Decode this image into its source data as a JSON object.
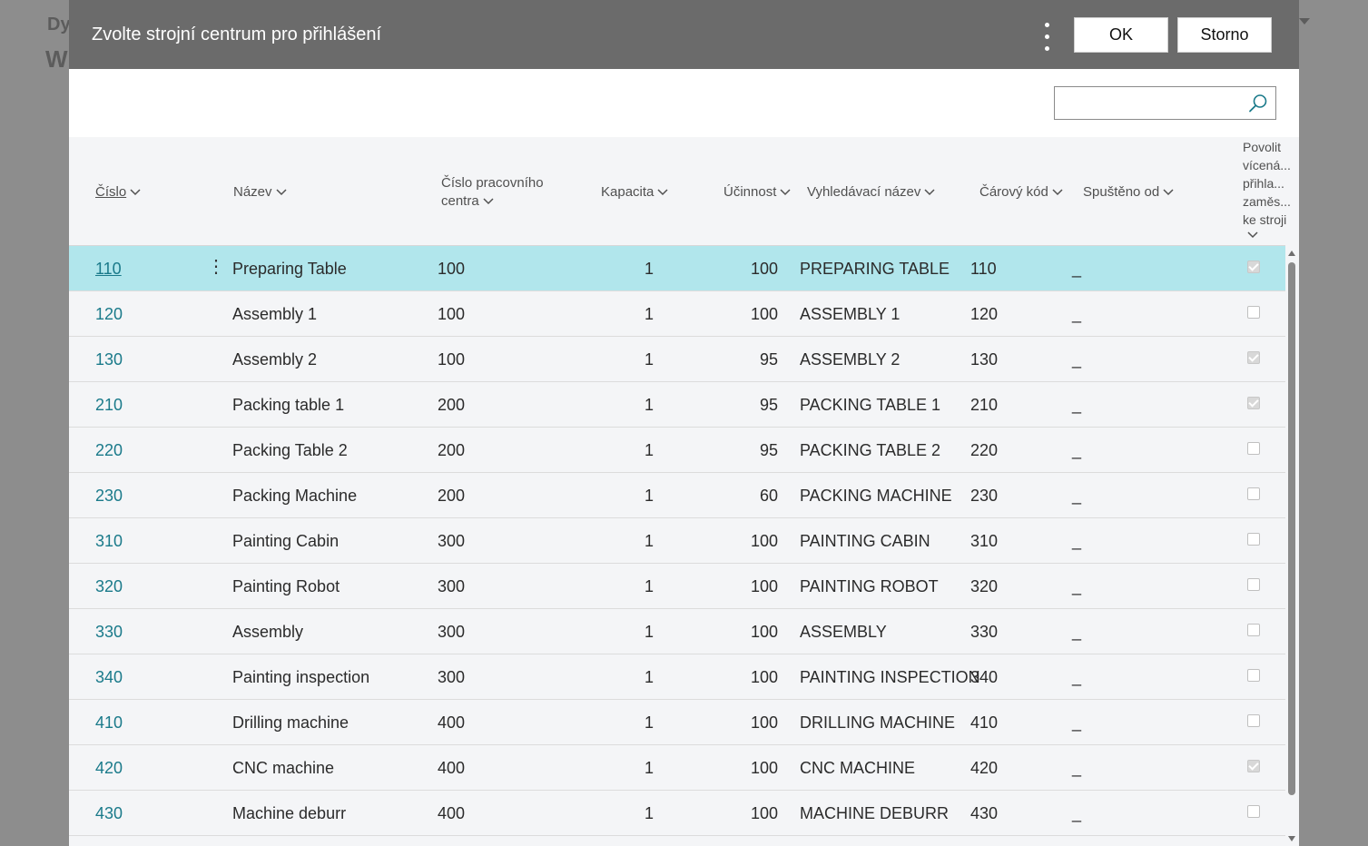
{
  "background": {
    "line1": "Dy",
    "line2": "W"
  },
  "dialog": {
    "title": "Zvolte strojní centrum pro přihlášení",
    "ok_label": "OK",
    "cancel_label": "Storno",
    "search_placeholder": "",
    "search_value": ""
  },
  "columns": {
    "no": "Číslo",
    "name": "Název",
    "center_line1": "Číslo pracovního",
    "center_line2": "centra",
    "capacity": "Kapacita",
    "efficiency": "Účinnost",
    "search_name": "Vyhledávací název",
    "barcode": "Čárový kód",
    "started_from": "Spuštěno od",
    "allow_1": "Povolit",
    "allow_2": "vícená...",
    "allow_3": "přihla...",
    "allow_4": "zaměs...",
    "allow_5": "ke stroji"
  },
  "rows": [
    {
      "no": "110",
      "name": "Preparing Table",
      "center": "100",
      "capacity": "1",
      "efficiency": "100",
      "search_name": "PREPARING TABLE",
      "barcode": "110",
      "started_from": "_",
      "allow_multi": true,
      "selected": true
    },
    {
      "no": "120",
      "name": "Assembly 1",
      "center": "100",
      "capacity": "1",
      "efficiency": "100",
      "search_name": "ASSEMBLY 1",
      "barcode": "120",
      "started_from": "_",
      "allow_multi": false,
      "selected": false
    },
    {
      "no": "130",
      "name": "Assembly 2",
      "center": "100",
      "capacity": "1",
      "efficiency": "95",
      "search_name": "ASSEMBLY 2",
      "barcode": "130",
      "started_from": "_",
      "allow_multi": true,
      "selected": false
    },
    {
      "no": "210",
      "name": "Packing table 1",
      "center": "200",
      "capacity": "1",
      "efficiency": "95",
      "search_name": "PACKING TABLE 1",
      "barcode": "210",
      "started_from": "_",
      "allow_multi": true,
      "selected": false
    },
    {
      "no": "220",
      "name": "Packing Table 2",
      "center": "200",
      "capacity": "1",
      "efficiency": "95",
      "search_name": "PACKING TABLE 2",
      "barcode": "220",
      "started_from": "_",
      "allow_multi": false,
      "selected": false
    },
    {
      "no": "230",
      "name": "Packing Machine",
      "center": "200",
      "capacity": "1",
      "efficiency": "60",
      "search_name": "PACKING MACHINE",
      "barcode": "230",
      "started_from": "_",
      "allow_multi": false,
      "selected": false
    },
    {
      "no": "310",
      "name": "Painting Cabin",
      "center": "300",
      "capacity": "1",
      "efficiency": "100",
      "search_name": "PAINTING CABIN",
      "barcode": "310",
      "started_from": "_",
      "allow_multi": false,
      "selected": false
    },
    {
      "no": "320",
      "name": "Painting Robot",
      "center": "300",
      "capacity": "1",
      "efficiency": "100",
      "search_name": "PAINTING ROBOT",
      "barcode": "320",
      "started_from": "_",
      "allow_multi": false,
      "selected": false
    },
    {
      "no": "330",
      "name": "Assembly",
      "center": "300",
      "capacity": "1",
      "efficiency": "100",
      "search_name": "ASSEMBLY",
      "barcode": "330",
      "started_from": "_",
      "allow_multi": false,
      "selected": false
    },
    {
      "no": "340",
      "name": "Painting inspection",
      "center": "300",
      "capacity": "1",
      "efficiency": "100",
      "search_name": "PAINTING INSPECTION",
      "barcode": "340",
      "started_from": "_",
      "allow_multi": false,
      "selected": false
    },
    {
      "no": "410",
      "name": "Drilling machine",
      "center": "400",
      "capacity": "1",
      "efficiency": "100",
      "search_name": "DRILLING MACHINE",
      "barcode": "410",
      "started_from": "_",
      "allow_multi": false,
      "selected": false
    },
    {
      "no": "420",
      "name": "CNC machine",
      "center": "400",
      "capacity": "1",
      "efficiency": "100",
      "search_name": "CNC MACHINE",
      "barcode": "420",
      "started_from": "_",
      "allow_multi": true,
      "selected": false
    },
    {
      "no": "430",
      "name": "Machine deburr",
      "center": "400",
      "capacity": "1",
      "efficiency": "100",
      "search_name": "MACHINE DEBURR",
      "barcode": "430",
      "started_from": "_",
      "allow_multi": false,
      "selected": false
    }
  ],
  "icons": {
    "search": "search-icon",
    "more": "more-vertical-icon",
    "sort": "chevron-down-icon"
  },
  "colors": {
    "header": "#6b6b6b",
    "selected_row": "#b1e6ec",
    "link": "#1a7a8a"
  }
}
